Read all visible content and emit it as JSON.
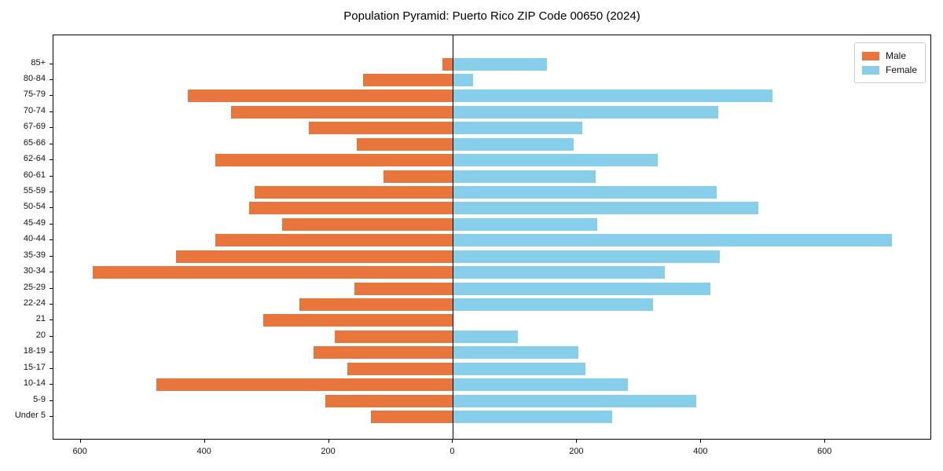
{
  "title": "Population Pyramid: Puerto Rico ZIP Code 00650 (2024)",
  "legend": {
    "male_label": "Male",
    "female_label": "Female"
  },
  "colors": {
    "male": "#e8763c",
    "female": "#87ceeb",
    "axis": "#000000",
    "legend_border": "#cccccc"
  },
  "chart_data": {
    "type": "bar",
    "orientation": "horizontal-pyramid",
    "title": "Population Pyramid: Puerto Rico ZIP Code 00650 (2024)",
    "xlabel": "",
    "ylabel": "",
    "grid": false,
    "categories_top_to_bottom": [
      "85+",
      "80-84",
      "75-79",
      "70-74",
      "67-69",
      "65-66",
      "62-64",
      "60-61",
      "55-59",
      "50-54",
      "45-49",
      "40-44",
      "35-39",
      "30-34",
      "25-29",
      "22-24",
      "21",
      "20",
      "18-19",
      "15-17",
      "10-14",
      "5-9",
      "Under 5"
    ],
    "series": [
      {
        "name": "Male",
        "side": "left",
        "color": "#e8763c",
        "values": [
          17,
          145,
          427,
          358,
          232,
          155,
          383,
          112,
          320,
          329,
          276,
          383,
          447,
          581,
          159,
          248,
          306,
          190,
          225,
          170,
          478,
          206,
          132
        ]
      },
      {
        "name": "Female",
        "side": "right",
        "color": "#87ceeb",
        "values": [
          151,
          32,
          515,
          427,
          209,
          195,
          330,
          230,
          425,
          492,
          232,
          708,
          430,
          341,
          415,
          323,
          0,
          105,
          202,
          213,
          282,
          392,
          257
        ]
      }
    ],
    "x_axis": {
      "tick_values": [
        -600,
        -400,
        -200,
        0,
        200,
        400,
        600
      ],
      "tick_labels": [
        "600",
        "400",
        "200",
        "0",
        "200",
        "400",
        "600"
      ],
      "xlim": [
        -644,
        772
      ],
      "note": "left side shows Male magnitudes as absolute values"
    },
    "legend": {
      "position": "upper-right",
      "entries": [
        "Male",
        "Female"
      ]
    }
  }
}
